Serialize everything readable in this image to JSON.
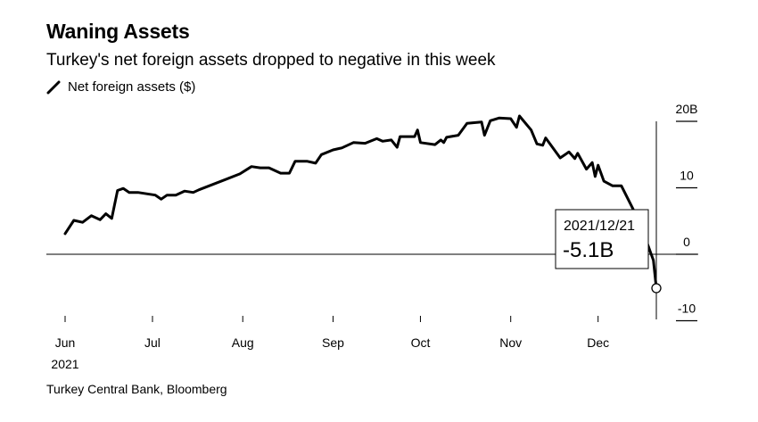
{
  "chart_data": {
    "type": "line",
    "title": "Waning Assets",
    "subtitle": "Turkey's net foreign assets dropped to negative in this week",
    "legend": [
      {
        "name": "Net foreign assets ($)",
        "color": "#000000",
        "placement": "top-left"
      }
    ],
    "source": "Turkey Central Bank, Bloomberg",
    "xlabel": "",
    "ylabel": "",
    "x_tick_labels": [
      "Jun",
      "Jul",
      "Aug",
      "Sep",
      "Oct",
      "Nov",
      "Dec"
    ],
    "x_year_label": "2021",
    "x_range": [
      "2021-06-01",
      "2021-12-21"
    ],
    "y_tick_labels": [
      "20B",
      "10",
      "0",
      "-10"
    ],
    "y_ticks": [
      20,
      10,
      0,
      -10
    ],
    "ylim": [
      -11,
      22
    ],
    "y_axis_side": "right",
    "grid": false,
    "annotation": {
      "date": "2021/12/21",
      "value_label": "-5.1B",
      "value": -5.1
    },
    "series": [
      {
        "name": "Net foreign assets ($)",
        "color": "#000000",
        "points": [
          [
            "2021-06-01",
            3.1
          ],
          [
            "2021-06-04",
            5.1
          ],
          [
            "2021-06-07",
            4.8
          ],
          [
            "2021-06-10",
            5.8
          ],
          [
            "2021-06-13",
            5.2
          ],
          [
            "2021-06-15",
            6.1
          ],
          [
            "2021-06-17",
            5.4
          ],
          [
            "2021-06-19",
            9.6
          ],
          [
            "2021-06-21",
            9.9
          ],
          [
            "2021-06-23",
            9.3
          ],
          [
            "2021-06-26",
            9.3
          ],
          [
            "2021-06-29",
            9.1
          ],
          [
            "2021-07-02",
            8.9
          ],
          [
            "2021-07-04",
            8.3
          ],
          [
            "2021-07-06",
            8.9
          ],
          [
            "2021-07-09",
            8.9
          ],
          [
            "2021-07-12",
            9.5
          ],
          [
            "2021-07-15",
            9.3
          ],
          [
            "2021-07-17",
            9.7
          ],
          [
            "2021-07-31",
            12.1
          ],
          [
            "2021-08-04",
            13.2
          ],
          [
            "2021-08-07",
            13.0
          ],
          [
            "2021-08-10",
            13.0
          ],
          [
            "2021-08-14",
            12.2
          ],
          [
            "2021-08-17",
            12.2
          ],
          [
            "2021-08-19",
            14.0
          ],
          [
            "2021-08-23",
            14.0
          ],
          [
            "2021-08-26",
            13.7
          ],
          [
            "2021-08-28",
            15.0
          ],
          [
            "2021-09-01",
            15.7
          ],
          [
            "2021-09-04",
            16.0
          ],
          [
            "2021-09-08",
            16.8
          ],
          [
            "2021-09-12",
            16.7
          ],
          [
            "2021-09-16",
            17.4
          ],
          [
            "2021-09-18",
            17.0
          ],
          [
            "2021-09-21",
            17.2
          ],
          [
            "2021-09-23",
            16.1
          ],
          [
            "2021-09-24",
            17.7
          ],
          [
            "2021-09-29",
            17.7
          ],
          [
            "2021-09-30",
            18.7
          ],
          [
            "2021-10-01",
            16.8
          ],
          [
            "2021-10-06",
            16.5
          ],
          [
            "2021-10-08",
            17.2
          ],
          [
            "2021-10-09",
            16.8
          ],
          [
            "2021-10-10",
            17.6
          ],
          [
            "2021-10-14",
            17.9
          ],
          [
            "2021-10-17",
            19.7
          ],
          [
            "2021-10-22",
            19.9
          ],
          [
            "2021-10-23",
            17.9
          ],
          [
            "2021-10-25",
            20.1
          ],
          [
            "2021-10-28",
            20.5
          ],
          [
            "2021-11-01",
            20.4
          ],
          [
            "2021-11-03",
            19.1
          ],
          [
            "2021-11-04",
            20.8
          ],
          [
            "2021-11-08",
            18.7
          ],
          [
            "2021-11-10",
            16.6
          ],
          [
            "2021-11-12",
            16.4
          ],
          [
            "2021-11-13",
            17.5
          ],
          [
            "2021-11-18",
            14.5
          ],
          [
            "2021-11-21",
            15.4
          ],
          [
            "2021-11-23",
            14.4
          ],
          [
            "2021-11-24",
            15.2
          ],
          [
            "2021-11-27",
            12.8
          ],
          [
            "2021-11-29",
            13.8
          ],
          [
            "2021-11-30",
            11.7
          ],
          [
            "2021-12-01",
            13.4
          ],
          [
            "2021-12-03",
            11.0
          ],
          [
            "2021-12-06",
            10.3
          ],
          [
            "2021-12-09",
            10.3
          ],
          [
            "2021-12-13",
            6.8
          ],
          [
            "2021-12-18",
            1.5
          ],
          [
            "2021-12-20",
            -0.9
          ],
          [
            "2021-12-21",
            -5.1
          ]
        ]
      }
    ]
  }
}
